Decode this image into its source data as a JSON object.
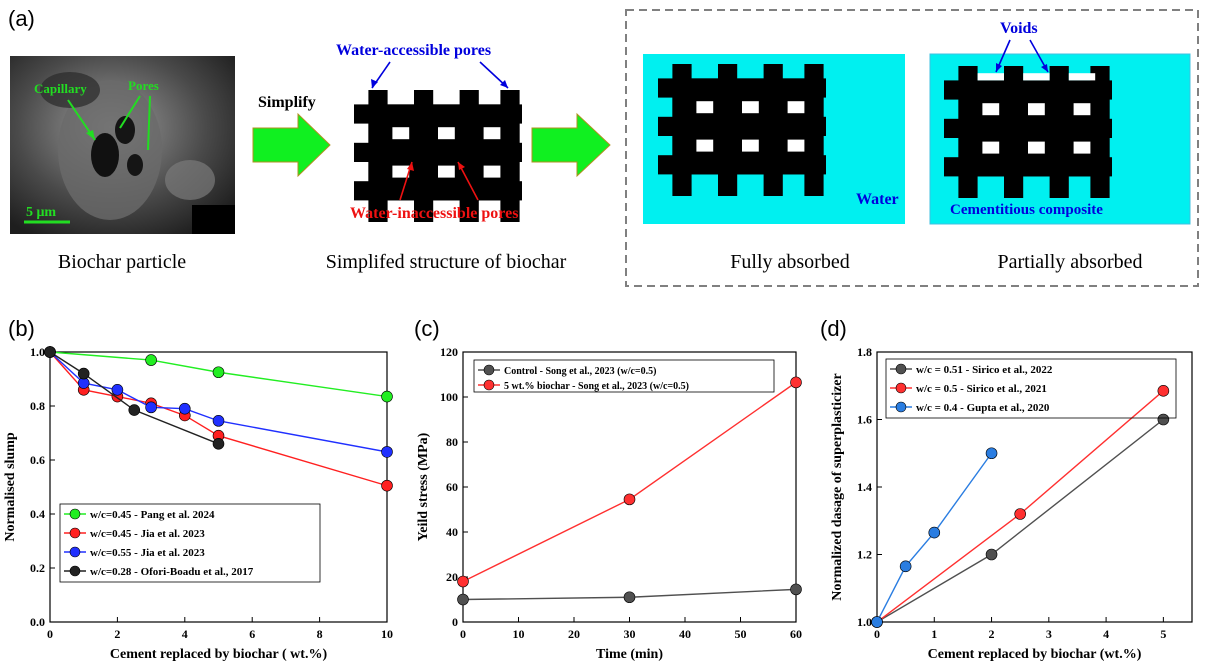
{
  "panel_a": {
    "panel_label": "(a)",
    "sem": {
      "capillary": "Capillary",
      "pores": "Pores",
      "scale": "5 μm",
      "caption": "Biochar particle"
    },
    "simplify": "Simplify",
    "structure": {
      "top_label": "Water-accessible pores",
      "bottom_label": "Water-inaccessible pores",
      "caption": "Simplifed structure of biochar"
    },
    "full": {
      "inner": "Water",
      "caption": "Fully absorbed"
    },
    "partial": {
      "top": "Voids",
      "inner": "Cementitious composite",
      "caption": "Partially absorbed"
    },
    "colors": {
      "cyan": "#00f0f0",
      "arrow_green": "#10f020",
      "blue_text": "#0000dd",
      "red_text": "#ee1111",
      "sem_green": "#22dd22"
    }
  },
  "chart_data": [
    {
      "panel": "(b)",
      "type": "line",
      "xlabel": "Cement replaced by biochar ( wt.%)",
      "ylabel": "Normalised slump",
      "xlim": [
        0,
        10
      ],
      "ylim": [
        0,
        1.0
      ],
      "xticks": [
        "0",
        "2",
        "4",
        "6",
        "8",
        "10"
      ],
      "yticks": [
        "0.0",
        "0.2",
        "0.4",
        "0.6",
        "0.8",
        "1.0"
      ],
      "legend_position": "bottom-left",
      "series": [
        {
          "name": "w/c=0.45   - Pang et al. 2024",
          "color": "#22ee22",
          "x": [
            0,
            3,
            5,
            10
          ],
          "y": [
            1.0,
            0.97,
            0.925,
            0.835
          ]
        },
        {
          "name": "w/c=0.45 - Jia et al. 2023",
          "color": "#ff2020",
          "x": [
            0,
            1,
            2,
            3,
            4,
            5,
            10
          ],
          "y": [
            1.0,
            0.86,
            0.835,
            0.81,
            0.765,
            0.69,
            0.505
          ]
        },
        {
          "name": "w/c=0.55 - Jia et al. 2023",
          "color": "#2030ff",
          "x": [
            0,
            1,
            2,
            3,
            4,
            5,
            10
          ],
          "y": [
            1.0,
            0.885,
            0.86,
            0.795,
            0.79,
            0.745,
            0.63
          ]
        },
        {
          "name": "w/c=0.28 - Ofori-Boadu et al., 2017",
          "color": "#222222",
          "x": [
            0,
            1,
            2.5,
            5
          ],
          "y": [
            1.0,
            0.92,
            0.785,
            0.66
          ]
        }
      ]
    },
    {
      "panel": "(c)",
      "type": "line",
      "xlabel": "Time (min)",
      "ylabel": "Yeild stress (MPa)",
      "xlim": [
        0,
        60
      ],
      "ylim": [
        0,
        120
      ],
      "xticks": [
        "0",
        "10",
        "20",
        "30",
        "40",
        "50",
        "60"
      ],
      "yticks": [
        "0",
        "20",
        "40",
        "60",
        "80",
        "100",
        "120"
      ],
      "legend_position": "top-left",
      "series": [
        {
          "name": "Control - Song et al., 2023 (w/c=0.5)",
          "color": "#505050",
          "x": [
            0,
            30,
            60
          ],
          "y": [
            10,
            11,
            14.5
          ]
        },
        {
          "name": "5 wt.% biochar - Song et al., 2023 (w/c=0.5)",
          "color": "#ff3030",
          "x": [
            0,
            30,
            60
          ],
          "y": [
            18,
            54.5,
            106.5
          ]
        }
      ]
    },
    {
      "panel": "(d)",
      "type": "line",
      "xlabel": "Cement replaced by biochar (wt.%)",
      "ylabel": "Normalized dasage of superplasticizer",
      "xlim": [
        0,
        5.5
      ],
      "ylim": [
        1.0,
        1.8
      ],
      "xticks": [
        "0",
        "1",
        "2",
        "3",
        "4",
        "5"
      ],
      "yticks": [
        "1.0",
        "1.2",
        "1.4",
        "1.6",
        "1.8"
      ],
      "legend_position": "top-left",
      "series": [
        {
          "name": "w/c = 0.51 - Sirico et al., 2022",
          "color": "#505050",
          "x": [
            0,
            2,
            5
          ],
          "y": [
            1.0,
            1.2,
            1.6
          ]
        },
        {
          "name": "w/c = 0.5 - Sirico et al., 2021",
          "color": "#ff3030",
          "x": [
            0,
            2.5,
            5
          ],
          "y": [
            1.0,
            1.32,
            1.685
          ]
        },
        {
          "name": "w/c = 0.4 - Gupta et al., 2020",
          "color": "#2a7de1",
          "x": [
            0,
            0.5,
            1,
            2
          ],
          "y": [
            1.0,
            1.165,
            1.265,
            1.5
          ]
        }
      ]
    }
  ]
}
